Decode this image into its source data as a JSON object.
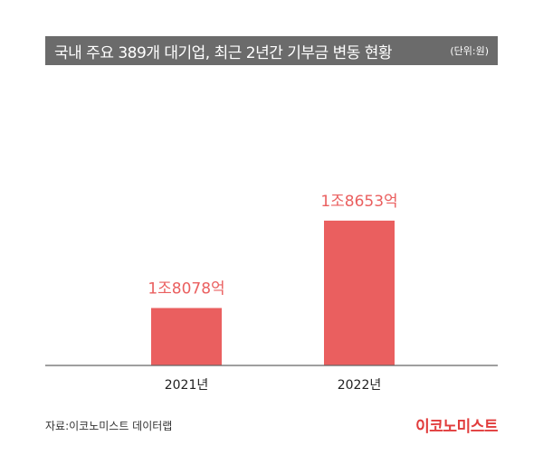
{
  "header": {
    "title": "국내 주요 389개 대기업, 최근 2년간 기부금 변동 현황",
    "unit": "(단위:원)"
  },
  "footer": {
    "source": "자료:이코노미스트 데이터랩",
    "brand": "이코노미스트"
  },
  "colors": {
    "bar": "#ea5f5f",
    "label": "#ea5f5f",
    "axis": "#666666",
    "header_bg": "#6b6b6b",
    "brand": "#e13c3c"
  },
  "chart_data": {
    "type": "bar",
    "title": "국내 주요 389개 대기업, 최근 2년간 기부금 변동 현황",
    "unit": "(단위:원)",
    "categories": [
      "2021년",
      "2022년"
    ],
    "values": [
      18078,
      18653
    ],
    "value_unit": "억원",
    "data_labels": [
      "1조8078억",
      "1조8653억"
    ],
    "ylim": [
      17700,
      18700
    ],
    "grid": false,
    "xlabel": "",
    "ylabel": ""
  }
}
